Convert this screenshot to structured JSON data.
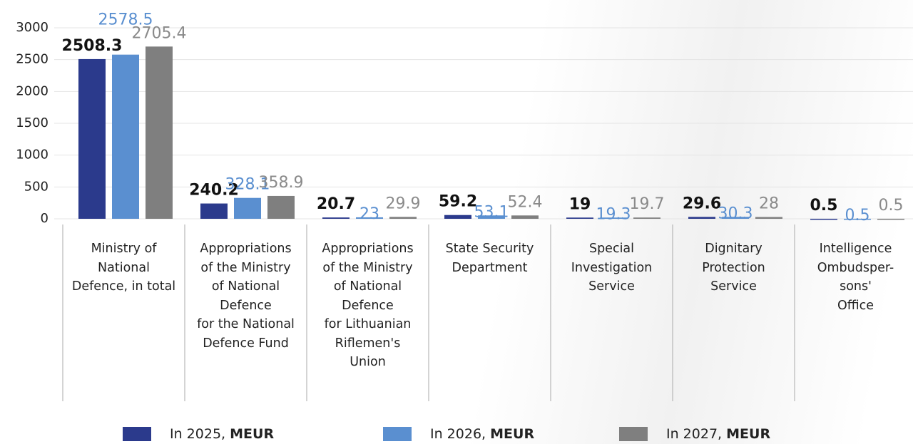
{
  "chart_data": {
    "type": "bar",
    "categories": [
      "Ministry of\nNational\nDefence, in total",
      "Appropriations\nof the Ministry\nof National\nDefence\nfor the National\nDefence Fund",
      "Appropriations\nof the Ministry\nof National\nDefence\nfor Lithuanian\nRiflemen's\nUnion",
      "State Security\nDepartment",
      "Special\nInvestigation\nService",
      "Dignitary\nProtection\nService",
      "Intelligence\nOmbudsper-\nsons'\nOffice"
    ],
    "series": [
      {
        "name": "In 2025,",
        "color": "#2b3a8c",
        "label_color": "#111111",
        "values": [
          2508.3,
          240.2,
          20.7,
          59.2,
          19,
          29.6,
          0.5
        ]
      },
      {
        "name": "In 2026,",
        "color": "#5a8fd0",
        "label_color": "#5a8fd0",
        "values": [
          2578.5,
          328.1,
          23,
          53.1,
          19.3,
          30.3,
          0.5
        ]
      },
      {
        "name": "In 2027,",
        "color": "#7f7f7f",
        "label_color": "#8a8a8a",
        "values": [
          2705.4,
          358.9,
          29.9,
          52.4,
          19.7,
          28,
          0.5
        ]
      }
    ],
    "legend_unit": "MEUR",
    "ylim": [
      0,
      3000
    ],
    "yticks": [
      0,
      500,
      1000,
      1500,
      2000,
      2500,
      3000
    ],
    "grid": true
  }
}
